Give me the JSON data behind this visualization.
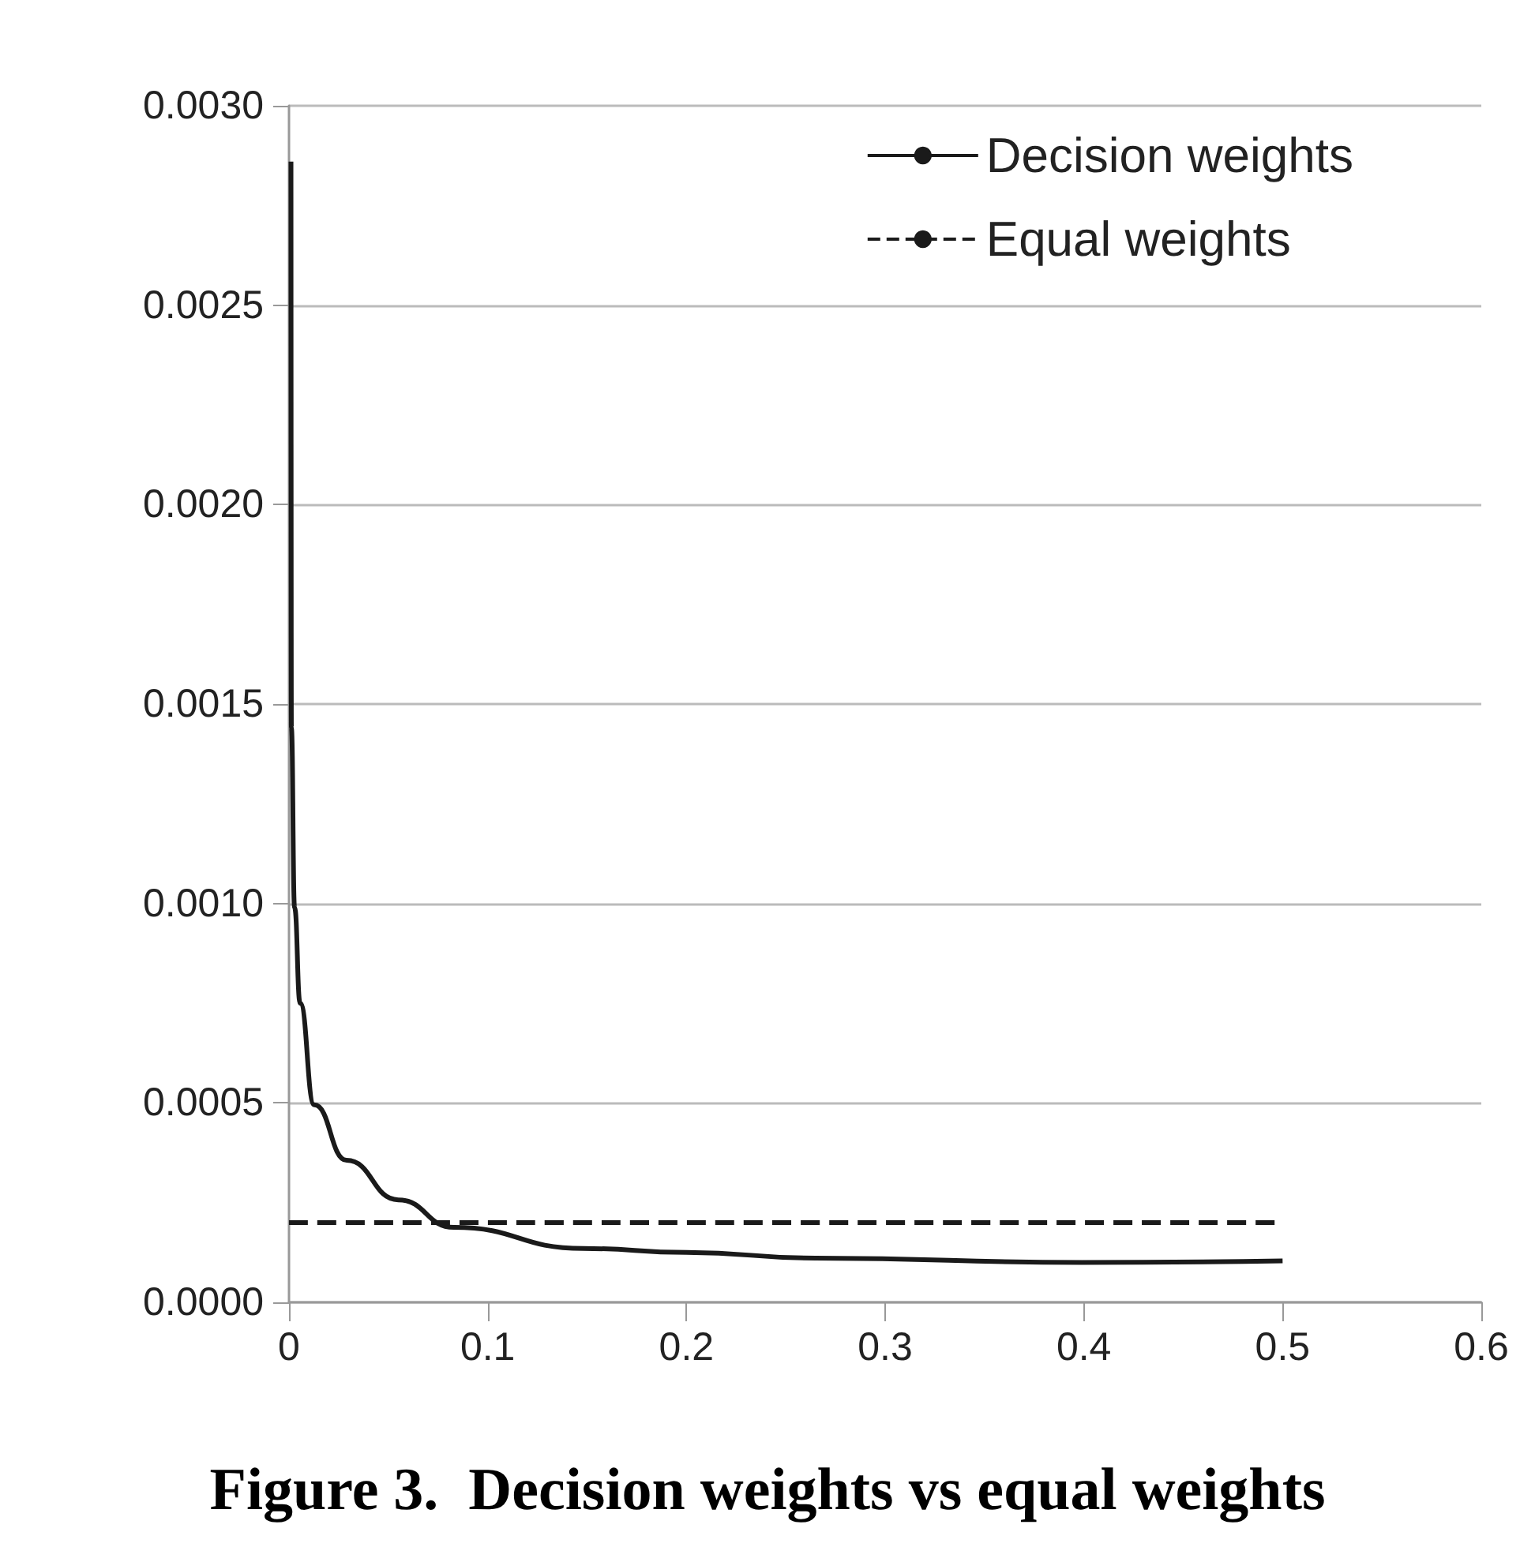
{
  "chart_data": {
    "type": "line",
    "title": "Figure 3.  Decision weights vs equal weights",
    "series": [
      {
        "name": "Decision weights",
        "color": "#1a1a1a",
        "line_style": "solid",
        "x": [
          0.001,
          0.0012,
          0.0028,
          0.0056,
          0.0127,
          0.029,
          0.055,
          0.083,
          0.148,
          0.2,
          0.265,
          0.399,
          0.5
        ],
        "values": [
          0.00286,
          0.00144,
          0.00099,
          0.00075,
          0.000495,
          0.000356,
          0.000257,
          0.000188,
          0.000135,
          0.000125,
          0.000111,
          0.0001,
          0.000104
        ]
      },
      {
        "name": "Equal weights",
        "color": "#1a1a1a",
        "line_style": "dashed",
        "x": [
          0,
          0.5
        ],
        "values": [
          0.0002,
          0.0002
        ]
      }
    ],
    "xlim": [
      0,
      0.6
    ],
    "xticks": [
      0,
      0.1,
      0.2,
      0.3,
      0.4,
      0.5,
      0.6
    ],
    "ylim": [
      0,
      0.003
    ],
    "yticks": [
      {
        "value": 0,
        "label": "0.0000"
      },
      {
        "value": 0.0005,
        "label": "0.0005"
      },
      {
        "value": 0.001,
        "label": "0.0010"
      },
      {
        "value": 0.0015,
        "label": "0.0015"
      },
      {
        "value": 0.002,
        "label": "0.0020"
      },
      {
        "value": 0.0025,
        "label": "0.0025"
      },
      {
        "value": 0.003,
        "label": "0.0030"
      }
    ],
    "grid": "y",
    "legend": "top right",
    "marker": "none"
  }
}
